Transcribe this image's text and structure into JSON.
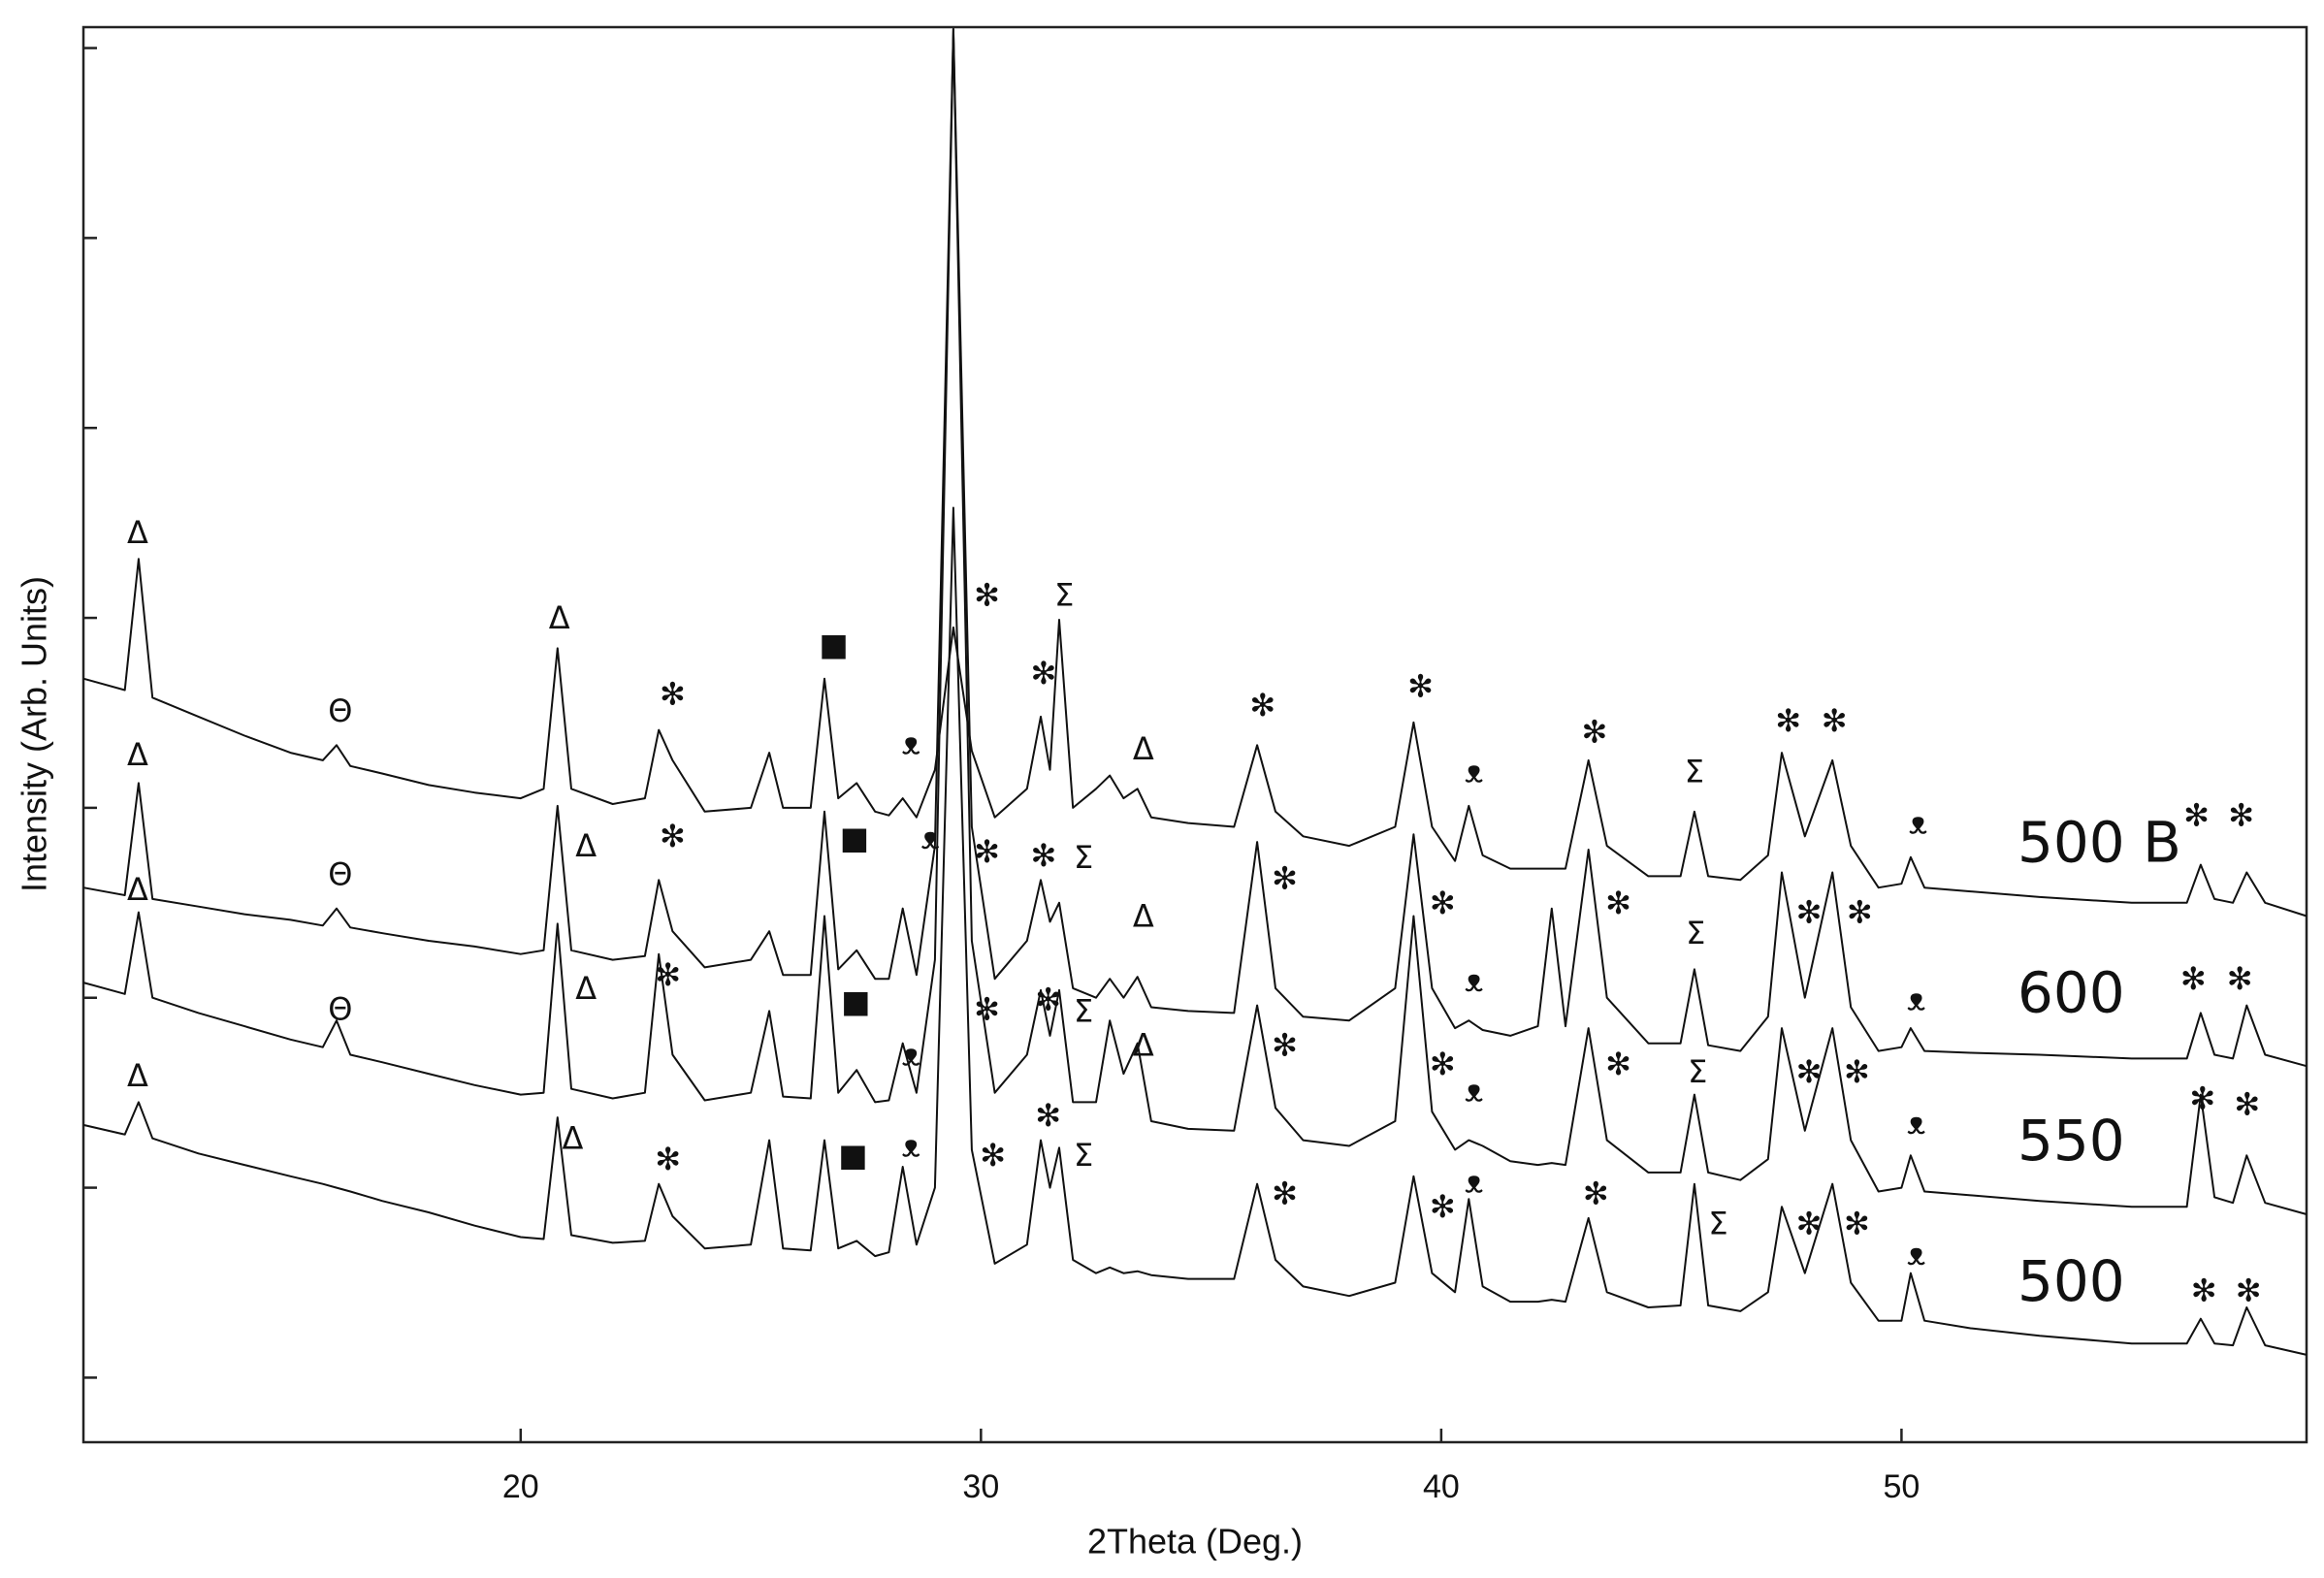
{
  "chart_data": {
    "type": "line",
    "x_label": "2Theta (Deg.)",
    "y_label": "Intensity (Arb. Units)",
    "xlim": [
      10.5,
      58.8
    ],
    "xticks": [
      20,
      30,
      40,
      50
    ],
    "ylim": [
      -0.34,
      7.11
    ],
    "yticks": [
      0,
      1,
      2,
      3,
      4,
      5,
      6,
      7
    ],
    "x": [
      10.5,
      11.4,
      11.7,
      12.0,
      13,
      14,
      15,
      15.7,
      16,
      16.3,
      17,
      18,
      19,
      20,
      20.5,
      20.8,
      21.1,
      22,
      22.7,
      23,
      23.3,
      24,
      25,
      25.4,
      25.7,
      26.3,
      26.6,
      26.9,
      27.3,
      27.7,
      28.0,
      28.3,
      28.6,
      29.0,
      29.4,
      29.8,
      30.3,
      31.0,
      31.3,
      31.5,
      31.7,
      32.0,
      32.5,
      32.8,
      33.1,
      33.4,
      33.7,
      34.5,
      35.5,
      36.0,
      36.4,
      37,
      38,
      39.0,
      39.4,
      39.8,
      40.3,
      40.6,
      40.9,
      41.5,
      42.1,
      42.4,
      42.7,
      43.2,
      43.6,
      44.5,
      45.2,
      45.5,
      45.8,
      46.5,
      47.1,
      47.4,
      47.9,
      48.5,
      48.9,
      49.5,
      50.0,
      50.2,
      50.5,
      51.5,
      53,
      55,
      56.2,
      56.5,
      56.8,
      57.2,
      57.5,
      57.9,
      58.8
    ],
    "series": [
      {
        "name": "500 B",
        "color": "#111111",
        "values": [
          3.68,
          3.62,
          4.31,
          3.58,
          3.48,
          3.38,
          3.29,
          3.25,
          3.33,
          3.22,
          3.18,
          3.12,
          3.08,
          3.05,
          3.1,
          3.84,
          3.1,
          3.02,
          3.05,
          3.41,
          3.25,
          2.98,
          3.0,
          3.29,
          3.0,
          3.0,
          3.68,
          3.05,
          3.13,
          2.98,
          2.96,
          3.05,
          2.95,
          3.2,
          3.95,
          3.3,
          2.95,
          3.1,
          3.48,
          3.2,
          3.99,
          3.0,
          3.1,
          3.17,
          3.05,
          3.1,
          2.95,
          2.92,
          2.9,
          3.33,
          2.98,
          2.85,
          2.8,
          2.9,
          3.45,
          2.9,
          2.72,
          3.01,
          2.75,
          2.68,
          2.68,
          2.68,
          2.68,
          3.25,
          2.8,
          2.64,
          2.64,
          2.98,
          2.64,
          2.62,
          2.75,
          3.29,
          2.85,
          3.25,
          2.8,
          2.58,
          2.6,
          2.74,
          2.58,
          2.56,
          2.53,
          2.5,
          2.5,
          2.7,
          2.52,
          2.5,
          2.66,
          2.5,
          2.43
        ]
      },
      {
        "name": "600",
        "color": "#111111",
        "values": [
          2.58,
          2.54,
          3.13,
          2.52,
          2.48,
          2.44,
          2.41,
          2.38,
          2.47,
          2.37,
          2.34,
          2.3,
          2.27,
          2.23,
          2.25,
          3.01,
          2.25,
          2.2,
          2.22,
          2.62,
          2.35,
          2.16,
          2.2,
          2.35,
          2.12,
          2.12,
          2.98,
          2.15,
          2.25,
          2.1,
          2.1,
          2.47,
          2.12,
          2.8,
          7.1,
          2.9,
          2.1,
          2.3,
          2.62,
          2.4,
          2.5,
          2.05,
          2.0,
          2.1,
          2.0,
          2.11,
          1.95,
          1.93,
          1.92,
          2.82,
          2.05,
          1.9,
          1.88,
          2.05,
          2.86,
          2.05,
          1.84,
          1.88,
          1.83,
          1.8,
          1.85,
          2.47,
          1.85,
          2.78,
          2.0,
          1.76,
          1.76,
          2.15,
          1.75,
          1.72,
          1.9,
          2.66,
          2.0,
          2.66,
          1.95,
          1.72,
          1.74,
          1.84,
          1.72,
          1.71,
          1.7,
          1.68,
          1.68,
          1.92,
          1.7,
          1.68,
          1.96,
          1.7,
          1.64
        ]
      },
      {
        "name": "550",
        "color": "#111111",
        "values": [
          2.08,
          2.02,
          2.45,
          2.0,
          1.92,
          1.85,
          1.78,
          1.74,
          1.88,
          1.7,
          1.66,
          1.6,
          1.54,
          1.49,
          1.5,
          2.39,
          1.52,
          1.47,
          1.5,
          2.23,
          1.7,
          1.46,
          1.5,
          1.93,
          1.48,
          1.47,
          2.43,
          1.5,
          1.62,
          1.45,
          1.46,
          1.76,
          1.5,
          2.2,
          7.1,
          2.3,
          1.5,
          1.7,
          2.04,
          1.8,
          2.04,
          1.45,
          1.45,
          1.88,
          1.6,
          1.76,
          1.35,
          1.31,
          1.3,
          1.96,
          1.42,
          1.25,
          1.22,
          1.35,
          2.43,
          1.4,
          1.2,
          1.25,
          1.22,
          1.14,
          1.12,
          1.13,
          1.12,
          1.84,
          1.25,
          1.08,
          1.08,
          1.49,
          1.08,
          1.04,
          1.15,
          1.84,
          1.3,
          1.84,
          1.25,
          0.98,
          1.0,
          1.17,
          0.98,
          0.96,
          0.93,
          0.9,
          0.9,
          1.49,
          0.95,
          0.92,
          1.17,
          0.92,
          0.86
        ]
      },
      {
        "name": "500",
        "color": "#111111",
        "values": [
          1.33,
          1.28,
          1.45,
          1.26,
          1.18,
          1.12,
          1.06,
          1.02,
          1.0,
          0.98,
          0.93,
          0.87,
          0.8,
          0.74,
          0.73,
          1.37,
          0.75,
          0.71,
          0.72,
          1.02,
          0.85,
          0.68,
          0.7,
          1.25,
          0.68,
          0.67,
          1.25,
          0.68,
          0.72,
          0.64,
          0.66,
          1.11,
          0.7,
          1.0,
          4.58,
          1.2,
          0.6,
          0.7,
          1.25,
          1.0,
          1.21,
          0.62,
          0.55,
          0.58,
          0.55,
          0.56,
          0.54,
          0.52,
          0.52,
          1.02,
          0.62,
          0.48,
          0.43,
          0.5,
          1.06,
          0.55,
          0.45,
          0.94,
          0.48,
          0.4,
          0.4,
          0.41,
          0.4,
          0.84,
          0.45,
          0.37,
          0.38,
          1.02,
          0.38,
          0.35,
          0.45,
          0.9,
          0.55,
          1.02,
          0.5,
          0.3,
          0.3,
          0.55,
          0.3,
          0.26,
          0.22,
          0.18,
          0.18,
          0.31,
          0.18,
          0.17,
          0.37,
          0.17,
          0.12
        ]
      }
    ],
    "annotations": [
      {
        "text": "Δ",
        "x": 11.68,
        "y": 4.44
      },
      {
        "text": "Θ",
        "x": 16.08,
        "y": 3.5
      },
      {
        "text": "Δ",
        "x": 20.84,
        "y": 3.99
      },
      {
        "text": "✻",
        "x": 23.3,
        "y": 3.59
      },
      {
        "text": "■",
        "x": 26.8,
        "y": 3.85
      },
      {
        "text": "ᴥ",
        "x": 28.48,
        "y": 3.33
      },
      {
        "text": "✻",
        "x": 30.13,
        "y": 4.11
      },
      {
        "text": "Σ",
        "x": 31.81,
        "y": 4.11
      },
      {
        "text": "✻",
        "x": 31.36,
        "y": 3.7
      },
      {
        "text": "Δ",
        "x": 33.53,
        "y": 3.3
      },
      {
        "text": "✻",
        "x": 36.12,
        "y": 3.53
      },
      {
        "text": "✻",
        "x": 39.55,
        "y": 3.63
      },
      {
        "text": "ᴥ",
        "x": 40.71,
        "y": 3.18
      },
      {
        "text": "✻",
        "x": 43.33,
        "y": 3.39
      },
      {
        "text": "Σ",
        "x": 45.5,
        "y": 3.18
      },
      {
        "text": "✻",
        "x": 47.54,
        "y": 3.45
      },
      {
        "text": "✻",
        "x": 48.54,
        "y": 3.45
      },
      {
        "text": "ᴥ",
        "x": 50.36,
        "y": 2.91
      },
      {
        "text": "✻",
        "x": 56.41,
        "y": 2.95
      },
      {
        "text": "✻",
        "x": 57.38,
        "y": 2.95
      },
      {
        "text": "Δ",
        "x": 11.68,
        "y": 3.27
      },
      {
        "text": "Θ",
        "x": 16.08,
        "y": 2.64
      },
      {
        "text": "Δ",
        "x": 21.42,
        "y": 2.79
      },
      {
        "text": "✻",
        "x": 23.3,
        "y": 2.84
      },
      {
        "text": "■",
        "x": 27.25,
        "y": 2.83
      },
      {
        "text": "ᴥ",
        "x": 28.9,
        "y": 2.83
      },
      {
        "text": "✻",
        "x": 30.13,
        "y": 2.76
      },
      {
        "text": "✻",
        "x": 31.36,
        "y": 2.74
      },
      {
        "text": "Σ",
        "x": 32.23,
        "y": 2.73
      },
      {
        "text": "Δ",
        "x": 33.53,
        "y": 2.42
      },
      {
        "text": "✻",
        "x": 36.6,
        "y": 2.62
      },
      {
        "text": "✻",
        "x": 40.03,
        "y": 2.49
      },
      {
        "text": "ᴥ",
        "x": 40.71,
        "y": 2.08
      },
      {
        "text": "✻",
        "x": 43.85,
        "y": 2.49
      },
      {
        "text": "Σ",
        "x": 45.53,
        "y": 2.33
      },
      {
        "text": "✻",
        "x": 47.99,
        "y": 2.44
      },
      {
        "text": "✻",
        "x": 49.09,
        "y": 2.44
      },
      {
        "text": "ᴥ",
        "x": 50.32,
        "y": 1.98
      },
      {
        "text": "✻",
        "x": 56.34,
        "y": 2.09
      },
      {
        "text": "✻",
        "x": 57.35,
        "y": 2.09
      },
      {
        "text": "Δ",
        "x": 11.68,
        "y": 2.56
      },
      {
        "text": "Θ",
        "x": 16.08,
        "y": 1.93
      },
      {
        "text": "Δ",
        "x": 21.42,
        "y": 2.04
      },
      {
        "text": "✻",
        "x": 23.2,
        "y": 2.11
      },
      {
        "text": "■",
        "x": 27.28,
        "y": 1.97
      },
      {
        "text": "ᴥ",
        "x": 28.48,
        "y": 1.69
      },
      {
        "text": "✻",
        "x": 30.13,
        "y": 1.93
      },
      {
        "text": "✻",
        "x": 31.46,
        "y": 1.98
      },
      {
        "text": "Σ",
        "x": 32.23,
        "y": 1.92
      },
      {
        "text": "Δ",
        "x": 33.53,
        "y": 1.74
      },
      {
        "text": "✻",
        "x": 36.6,
        "y": 1.74
      },
      {
        "text": "✻",
        "x": 40.03,
        "y": 1.64
      },
      {
        "text": "ᴥ",
        "x": 40.71,
        "y": 1.5
      },
      {
        "text": "✻",
        "x": 43.85,
        "y": 1.64
      },
      {
        "text": "Σ",
        "x": 45.57,
        "y": 1.6
      },
      {
        "text": "✻",
        "x": 47.99,
        "y": 1.6
      },
      {
        "text": "✻",
        "x": 49.03,
        "y": 1.6
      },
      {
        "text": "ᴥ",
        "x": 50.32,
        "y": 1.33
      },
      {
        "text": "✻",
        "x": 56.54,
        "y": 1.46
      },
      {
        "text": "✻",
        "x": 57.51,
        "y": 1.43
      },
      {
        "text": "Δ",
        "x": 11.68,
        "y": 1.58
      },
      {
        "text": "Δ",
        "x": 21.13,
        "y": 1.25
      },
      {
        "text": "✻",
        "x": 23.2,
        "y": 1.14
      },
      {
        "text": "■",
        "x": 27.22,
        "y": 1.16
      },
      {
        "text": "ᴥ",
        "x": 28.48,
        "y": 1.21
      },
      {
        "text": "✻",
        "x": 30.26,
        "y": 1.16
      },
      {
        "text": "✻",
        "x": 31.46,
        "y": 1.37
      },
      {
        "text": "Σ",
        "x": 32.23,
        "y": 1.16
      },
      {
        "text": "✻",
        "x": 36.6,
        "y": 0.96
      },
      {
        "text": "✻",
        "x": 40.03,
        "y": 0.89
      },
      {
        "text": "ᴥ",
        "x": 40.71,
        "y": 1.02
      },
      {
        "text": "✻",
        "x": 43.36,
        "y": 0.96
      },
      {
        "text": "Σ",
        "x": 46.02,
        "y": 0.8
      },
      {
        "text": "✻",
        "x": 47.99,
        "y": 0.8
      },
      {
        "text": "✻",
        "x": 49.03,
        "y": 0.8
      },
      {
        "text": "ᴥ",
        "x": 50.32,
        "y": 0.64
      },
      {
        "text": "✻",
        "x": 56.57,
        "y": 0.45
      },
      {
        "text": "✻",
        "x": 57.54,
        "y": 0.45
      }
    ]
  }
}
